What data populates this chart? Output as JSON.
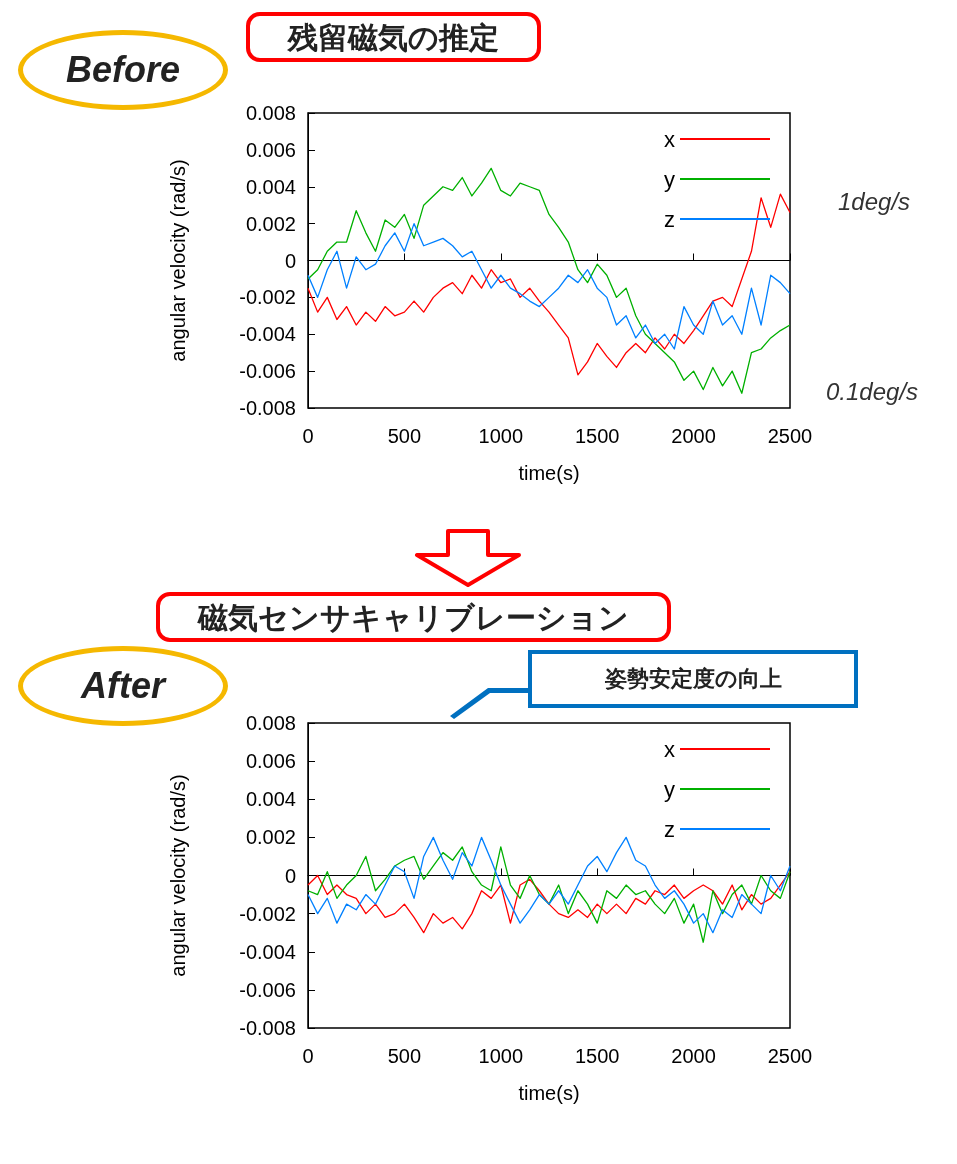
{
  "chart_data": [
    {
      "type": "line",
      "title": "残留磁気の推定",
      "xlabel": "time(s)",
      "ylabel": "angular velocity (rad/s)",
      "x": [
        0,
        50,
        100,
        150,
        200,
        250,
        300,
        350,
        400,
        450,
        500,
        550,
        600,
        650,
        700,
        750,
        800,
        850,
        900,
        950,
        1000,
        1050,
        1100,
        1150,
        1200,
        1250,
        1300,
        1350,
        1400,
        1450,
        1500,
        1550,
        1600,
        1650,
        1700,
        1750,
        1800,
        1850,
        1900,
        1950,
        2000,
        2050,
        2100,
        2150,
        2200,
        2250,
        2300,
        2350,
        2400,
        2450,
        2500
      ],
      "series": [
        {
          "name": "x",
          "color": "#ff0000",
          "values": [
            -0.0015,
            -0.0028,
            -0.002,
            -0.0032,
            -0.0025,
            -0.0035,
            -0.0028,
            -0.0033,
            -0.0025,
            -0.003,
            -0.0028,
            -0.0022,
            -0.0028,
            -0.002,
            -0.0015,
            -0.0012,
            -0.0018,
            -0.0008,
            -0.0015,
            -0.0005,
            -0.0012,
            -0.001,
            -0.002,
            -0.0015,
            -0.0022,
            -0.0028,
            -0.0035,
            -0.0042,
            -0.0062,
            -0.0055,
            -0.0045,
            -0.0052,
            -0.0058,
            -0.005,
            -0.0045,
            -0.005,
            -0.0042,
            -0.0048,
            -0.004,
            -0.0045,
            -0.0038,
            -0.003,
            -0.0022,
            -0.002,
            -0.0025,
            -0.001,
            0.0005,
            0.0034,
            0.0018,
            0.0036,
            0.0026
          ]
        },
        {
          "name": "y",
          "color": "#00b000",
          "values": [
            -0.001,
            -0.0005,
            0.0005,
            0.001,
            0.001,
            0.0027,
            0.0015,
            0.0005,
            0.0022,
            0.0018,
            0.0025,
            0.0012,
            0.003,
            0.0035,
            0.004,
            0.0038,
            0.0045,
            0.0035,
            0.0042,
            0.005,
            0.0038,
            0.0035,
            0.0042,
            0.004,
            0.0038,
            0.0025,
            0.0018,
            0.001,
            -0.0005,
            -0.0012,
            -0.0002,
            -0.0008,
            -0.002,
            -0.0015,
            -0.003,
            -0.004,
            -0.0045,
            -0.005,
            -0.0055,
            -0.0065,
            -0.006,
            -0.007,
            -0.0058,
            -0.0068,
            -0.006,
            -0.0072,
            -0.005,
            -0.0048,
            -0.0042,
            -0.0038,
            -0.0035
          ]
        },
        {
          "name": "z",
          "color": "#0080ff",
          "values": [
            -0.0008,
            -0.002,
            -0.0005,
            0.0005,
            -0.0015,
            0.0002,
            -0.0005,
            -0.0002,
            0.0008,
            0.0015,
            0.0005,
            0.002,
            0.0008,
            0.001,
            0.0012,
            0.0008,
            0.0002,
            0.0005,
            -0.0005,
            -0.0015,
            -0.0008,
            -0.0015,
            -0.0018,
            -0.0022,
            -0.0025,
            -0.002,
            -0.0015,
            -0.0008,
            -0.0012,
            -0.0005,
            -0.0015,
            -0.002,
            -0.0035,
            -0.003,
            -0.0042,
            -0.0035,
            -0.0045,
            -0.004,
            -0.0048,
            -0.0025,
            -0.0035,
            -0.004,
            -0.0022,
            -0.0035,
            -0.003,
            -0.004,
            -0.0015,
            -0.0035,
            -0.0008,
            -0.0012,
            -0.0018
          ]
        }
      ],
      "xlim": [
        0,
        2500
      ],
      "xticks": [
        0,
        500,
        1000,
        1500,
        2000,
        2500
      ],
      "ylim": [
        -0.008,
        0.008
      ],
      "yticks": [
        -0.008,
        -0.006,
        -0.004,
        -0.002,
        0,
        0.002,
        0.004,
        0.006,
        0.008
      ],
      "legend": "top right",
      "annotations": [
        "Before",
        "1deg/s",
        "0.1deg/s"
      ]
    },
    {
      "type": "line",
      "title": "磁気センサキャリブレーション",
      "xlabel": "time(s)",
      "ylabel": "angular velocity (rad/s)",
      "x": [
        0,
        50,
        100,
        150,
        200,
        250,
        300,
        350,
        400,
        450,
        500,
        550,
        600,
        650,
        700,
        750,
        800,
        850,
        900,
        950,
        1000,
        1050,
        1100,
        1150,
        1200,
        1250,
        1300,
        1350,
        1400,
        1450,
        1500,
        1550,
        1600,
        1650,
        1700,
        1750,
        1800,
        1850,
        1900,
        1950,
        2000,
        2050,
        2100,
        2150,
        2200,
        2250,
        2300,
        2350,
        2400,
        2450,
        2500
      ],
      "series": [
        {
          "name": "x",
          "color": "#ff0000",
          "values": [
            -0.0005,
            0,
            -0.001,
            -0.0005,
            -0.001,
            -0.0012,
            -0.002,
            -0.0015,
            -0.0022,
            -0.002,
            -0.0015,
            -0.0022,
            -0.003,
            -0.002,
            -0.0025,
            -0.0022,
            -0.0028,
            -0.002,
            -0.0008,
            -0.0012,
            -0.0005,
            -0.0025,
            -0.0005,
            -0.0002,
            -0.0008,
            -0.0015,
            -0.002,
            -0.0022,
            -0.0018,
            -0.0022,
            -0.0015,
            -0.002,
            -0.0015,
            -0.002,
            -0.0012,
            -0.0015,
            -0.0008,
            -0.001,
            -0.0005,
            -0.0012,
            -0.0008,
            -0.0005,
            -0.0008,
            -0.0015,
            -0.0005,
            -0.0018,
            -0.001,
            -0.0015,
            -0.0012,
            -0.0005,
            0.0002
          ]
        },
        {
          "name": "y",
          "color": "#00b000",
          "values": [
            -0.0008,
            -0.001,
            0.0002,
            -0.0012,
            -0.0005,
            0,
            0.001,
            -0.0008,
            -0.0002,
            0.0005,
            0.0008,
            0.001,
            -0.0002,
            0.0005,
            0.0012,
            0.0008,
            0.0015,
            0.0002,
            -0.0005,
            -0.0008,
            0.0015,
            -0.0005,
            -0.0012,
            0,
            -0.001,
            -0.0015,
            -0.0005,
            -0.002,
            -0.0008,
            -0.0015,
            -0.0025,
            -0.0008,
            -0.0012,
            -0.0005,
            -0.001,
            -0.0008,
            -0.0015,
            -0.002,
            -0.0012,
            -0.0025,
            -0.0015,
            -0.0035,
            -0.0008,
            -0.002,
            -0.001,
            -0.0005,
            -0.0015,
            0,
            -0.0008,
            -0.0012,
            0.0002
          ]
        },
        {
          "name": "z",
          "color": "#0080ff",
          "values": [
            -0.001,
            -0.002,
            -0.0012,
            -0.0025,
            -0.0015,
            -0.0018,
            -0.001,
            -0.0015,
            -0.0005,
            0.0005,
            0.0002,
            -0.0012,
            0.001,
            0.002,
            0.0008,
            -0.0002,
            0.0012,
            0.0005,
            0.002,
            0.0008,
            -0.0005,
            -0.0015,
            -0.0025,
            -0.0018,
            -0.001,
            -0.0015,
            -0.0008,
            -0.0015,
            -0.0005,
            0.0005,
            0.001,
            0.0002,
            0.0012,
            0.002,
            0.0008,
            0.0005,
            -0.0005,
            -0.0012,
            -0.0008,
            -0.0015,
            -0.0025,
            -0.002,
            -0.003,
            -0.0018,
            -0.0022,
            -0.001,
            -0.0015,
            -0.002,
            0,
            -0.0008,
            0.0005
          ]
        }
      ],
      "xlim": [
        0,
        2500
      ],
      "xticks": [
        0,
        500,
        1000,
        1500,
        2000,
        2500
      ],
      "ylim": [
        -0.008,
        0.008
      ],
      "yticks": [
        -0.008,
        -0.006,
        -0.004,
        -0.002,
        0,
        0.002,
        0.004,
        0.006,
        0.008
      ],
      "legend": "top right",
      "annotations": [
        "After",
        "姿勢安定度の向上"
      ]
    }
  ]
}
